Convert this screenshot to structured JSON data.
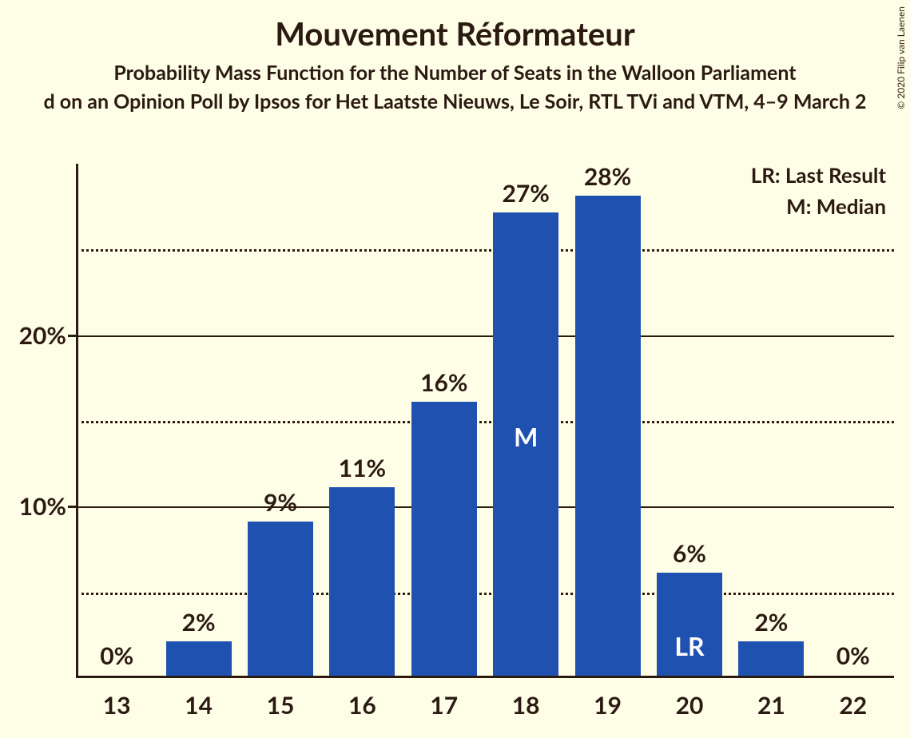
{
  "title": "Mouvement Réformateur",
  "subtitle": "Probability Mass Function for the Number of Seats in the Walloon Parliament",
  "source": "d on an Opinion Poll by Ipsos for Het Laatste Nieuws, Le Soir, RTL TVi and VTM, 4–9 March 2",
  "legend": {
    "lr": "LR: Last Result",
    "m": "M: Median"
  },
  "copyright": "© 2020 Filip van Laenen",
  "chart": {
    "type": "bar",
    "background_color": "#fefde6",
    "bar_color": "#1f52b0",
    "text_color": "#2b1a12",
    "inner_label_color": "#ffffff",
    "grid_color": "#2b1a12",
    "ymax": 30,
    "y_major_ticks": [
      10,
      20
    ],
    "y_minor_ticks": [
      5,
      15,
      25
    ],
    "y_tick_labels": {
      "10": "10%",
      "20": "20%"
    },
    "bar_width_ratio": 0.8,
    "categories": [
      "13",
      "14",
      "15",
      "16",
      "17",
      "18",
      "19",
      "20",
      "21",
      "22"
    ],
    "values": [
      0,
      2,
      9,
      11,
      16,
      27,
      28,
      6,
      2,
      0
    ],
    "value_labels": [
      "0%",
      "2%",
      "9%",
      "11%",
      "16%",
      "27%",
      "28%",
      "6%",
      "2%",
      "0%"
    ],
    "inner_labels": {
      "18": "M",
      "20": "LR"
    },
    "title_fontsize": 40,
    "subtitle_fontsize": 25,
    "axis_label_fontsize": 30,
    "value_label_fontsize": 30,
    "inner_label_fontsize": 32
  }
}
